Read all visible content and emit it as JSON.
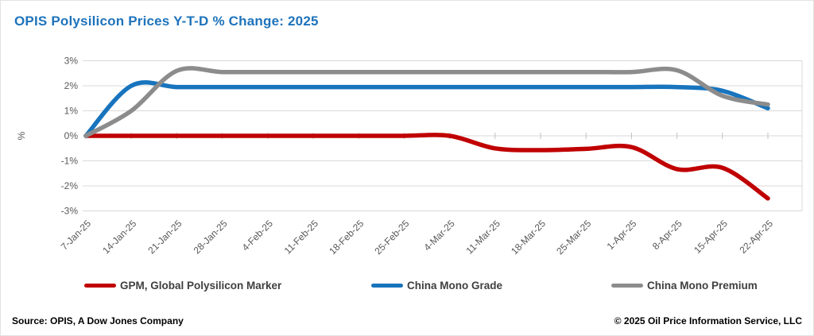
{
  "header": {
    "title": "OPIS Polysilicon Prices Y-T-D % Change: 2025"
  },
  "footer": {
    "source": "Source: OPIS, A Dow Jones Company",
    "copyright": "© 2025 Oil Price Information Service, LLC"
  },
  "colors": {
    "title": "#1e73bb",
    "gpm_red": "#c00000",
    "mono_grade_blue": "#1874bd",
    "mono_premium_gray": "#8c8c8c",
    "gridline": "#d9d9d9",
    "axis_tick": "#bfbfbf",
    "axis_text": "#595959",
    "legend_text": "#3f3f3f"
  },
  "chart_data": {
    "type": "line",
    "title": "OPIS Polysilicon Prices Y-T-D % Change: 2025",
    "xlabel": "",
    "ylabel": "%",
    "ylim": [
      -3,
      3
    ],
    "grid": true,
    "legend_position": "bottom",
    "ytick_labels": [
      "3%",
      "2%",
      "1%",
      "0%",
      "-1%",
      "-2%",
      "-3%"
    ],
    "categories": [
      "7-Jan-25",
      "14-Jan-25",
      "21-Jan-25",
      "28-Jan-25",
      "4-Feb-25",
      "11-Feb-25",
      "18-Feb-25",
      "25-Feb-25",
      "4-Mar-25",
      "11-Mar-25",
      "18-Mar-25",
      "25-Mar-25",
      "1-Apr-25",
      "8-Apr-25",
      "15-Apr-25",
      "22-Apr-25"
    ],
    "series": [
      {
        "id": "gpm",
        "name": "GPM, Global Polysilicon Marker",
        "color": "#c00000",
        "values": [
          0,
          0,
          0,
          0,
          0,
          0,
          0,
          0,
          0,
          -0.5,
          -0.57,
          -0.52,
          -0.45,
          -1.33,
          -1.28,
          -2.5
        ]
      },
      {
        "id": "china-mono-grade",
        "name": "China Mono Grade",
        "color": "#1874bd",
        "values": [
          0,
          2.0,
          1.95,
          1.95,
          1.95,
          1.95,
          1.95,
          1.95,
          1.95,
          1.95,
          1.95,
          1.95,
          1.95,
          1.95,
          1.8,
          1.1
        ]
      },
      {
        "id": "china-mono-premium",
        "name": "China Mono Premium",
        "color": "#8c8c8c",
        "values": [
          0,
          1.0,
          2.6,
          2.55,
          2.55,
          2.55,
          2.55,
          2.55,
          2.55,
          2.55,
          2.55,
          2.55,
          2.55,
          2.62,
          1.6,
          1.25
        ]
      }
    ]
  }
}
